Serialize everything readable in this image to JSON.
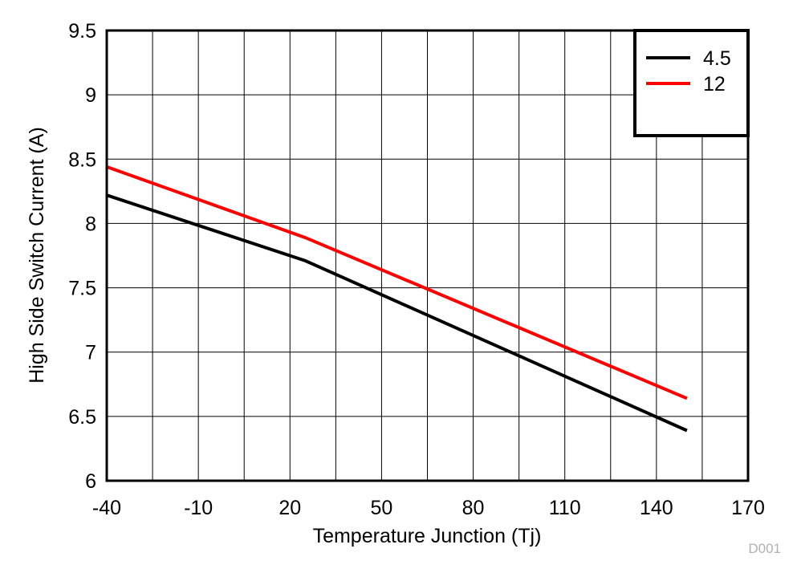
{
  "chart_data": {
    "type": "line",
    "title": "",
    "xlabel": "Temperature Junction (Tj)",
    "ylabel": "High Side Switch Current (A)",
    "xlim": [
      -40,
      170
    ],
    "ylim": [
      6,
      9.5
    ],
    "xticks": [
      -40,
      -10,
      20,
      50,
      80,
      110,
      140,
      170
    ],
    "yticks": [
      6,
      6.5,
      7,
      7.5,
      8,
      8.5,
      9,
      9.5
    ],
    "ytick_labels": [
      "6",
      "6.5",
      "7",
      "7.5",
      "8",
      "8.5",
      "9",
      "9.5"
    ],
    "grid": true,
    "grid_x_step": 15,
    "grid_y_step": 0.5,
    "legend_position": "top-right",
    "series": [
      {
        "name": "4.5",
        "color": "#000000",
        "x": [
          -40,
          25,
          150
        ],
        "y": [
          8.22,
          7.71,
          6.39
        ]
      },
      {
        "name": "12",
        "color": "#ff0000",
        "x": [
          -40,
          25,
          150
        ],
        "y": [
          8.44,
          7.89,
          6.64
        ]
      }
    ],
    "watermark": "D001"
  }
}
